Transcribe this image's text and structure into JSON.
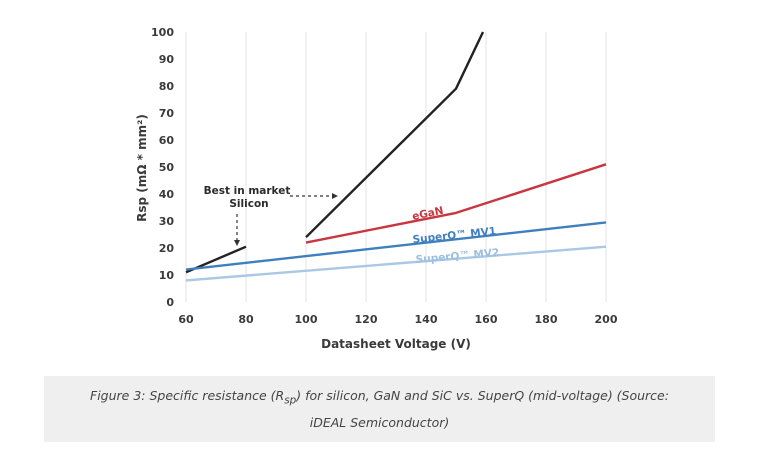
{
  "chart_data": {
    "type": "line",
    "xlabel": "Datasheet Voltage (V)",
    "ylabel": "Rsp (mΩ * mm²)",
    "xlim": [
      60,
      200
    ],
    "ylim": [
      0,
      100
    ],
    "xticks": [
      60,
      80,
      100,
      120,
      140,
      160,
      180,
      200
    ],
    "yticks": [
      0,
      10,
      20,
      30,
      40,
      50,
      60,
      70,
      80,
      90,
      100
    ],
    "grid": "vertical",
    "series": [
      {
        "name": "",
        "color": "#222222",
        "points": [
          [
            60,
            11
          ],
          [
            80,
            20.5
          ]
        ]
      },
      {
        "name": "",
        "color": "#222222",
        "points": [
          [
            100,
            24
          ],
          [
            150,
            79
          ],
          [
            159,
            100
          ]
        ]
      },
      {
        "name": "eGaN",
        "color": "#c8373f",
        "points": [
          [
            100,
            22
          ],
          [
            150,
            33
          ],
          [
            200,
            51
          ]
        ]
      },
      {
        "name": "SuperQ™ MV1",
        "color": "#3f7fbe",
        "points": [
          [
            60,
            12
          ],
          [
            200,
            29.5
          ]
        ]
      },
      {
        "name": "SuperQ™ MV2",
        "color": "#a9c8e6",
        "points": [
          [
            60,
            8
          ],
          [
            200,
            20.5
          ]
        ]
      }
    ],
    "annotations": [
      {
        "line1": "Best in market",
        "line2": "Silicon"
      }
    ]
  },
  "caption": {
    "text": "Figure 3: Specific resistance (R",
    "sub": "sp",
    "text2": ") for silicon, GaN and SiC vs. SuperQ (mid-voltage) (Source: iDEAL Semiconductor)"
  }
}
